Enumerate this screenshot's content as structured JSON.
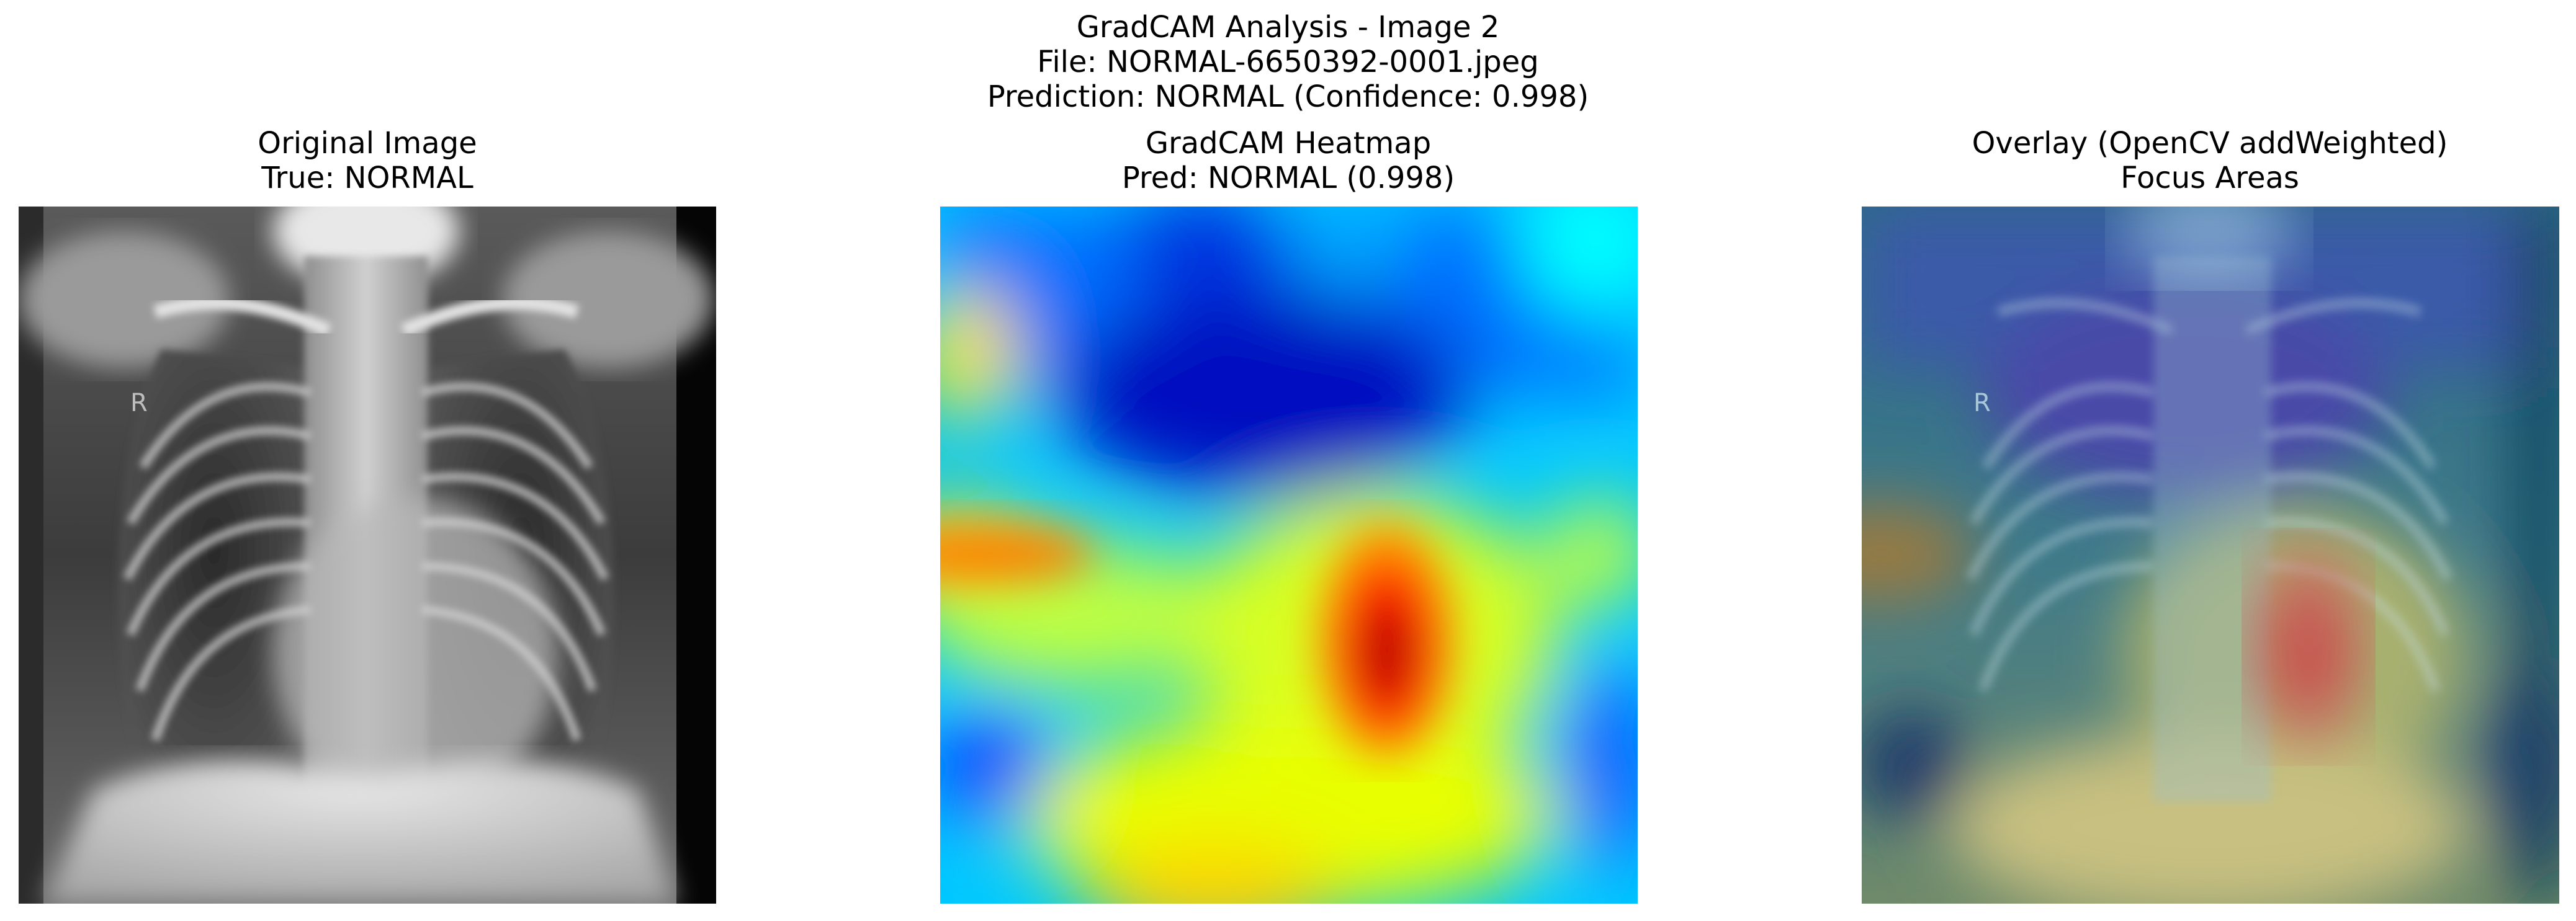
{
  "figure": {
    "title_lines": [
      "GradCAM Analysis - Image 2",
      "File: NORMAL-6650392-0001.jpeg",
      "Prediction: NORMAL (Confidence: 0.998)"
    ]
  },
  "panels": [
    {
      "id": "original",
      "title_lines": [
        "Original Image",
        "True: NORMAL"
      ],
      "image_marking": "R"
    },
    {
      "id": "heatmap",
      "title_lines": [
        "GradCAM Heatmap",
        "Pred: NORMAL (0.998)"
      ],
      "colormap": "jet"
    },
    {
      "id": "overlay",
      "title_lines": [
        "Overlay (OpenCV addWeighted)",
        "Focus Areas"
      ],
      "image_marking": "R"
    }
  ]
}
